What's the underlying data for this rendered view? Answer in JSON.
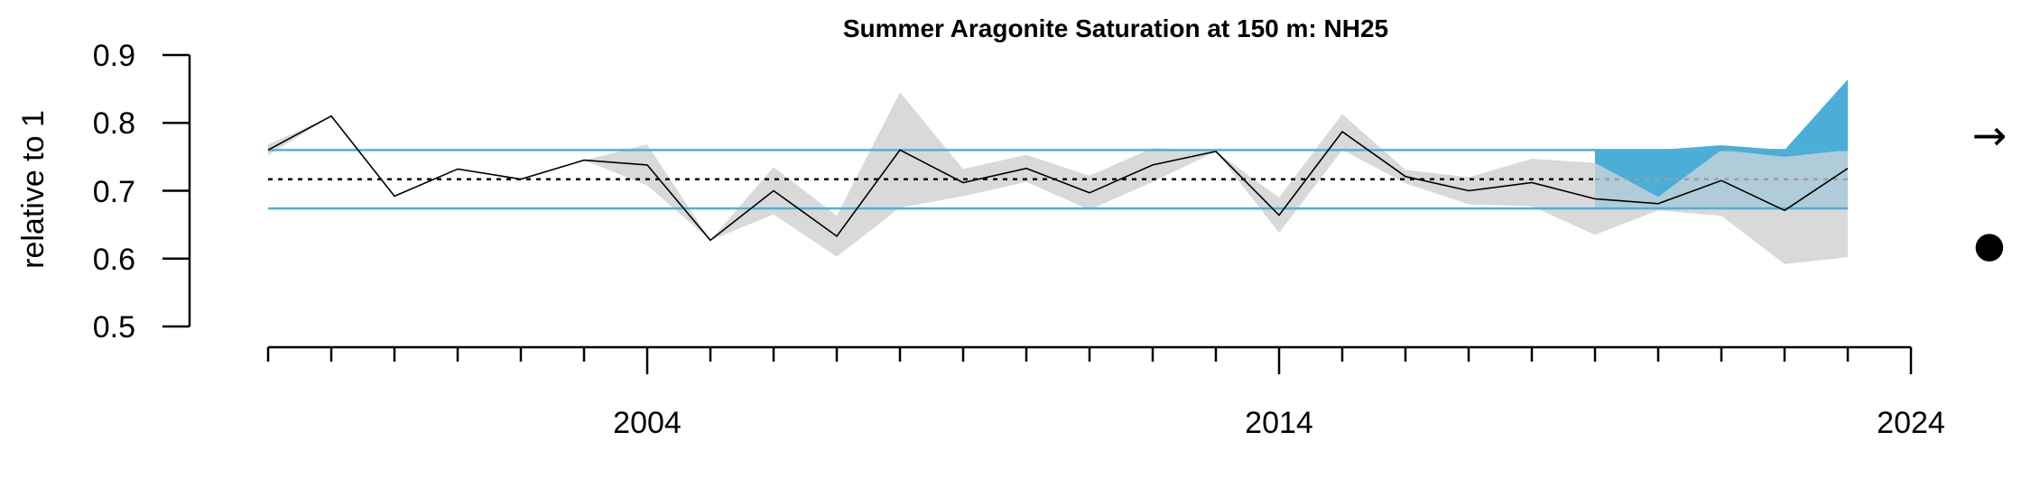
{
  "chart_data": {
    "type": "line",
    "title": "Summer Aragonite Saturation at 150 m: NH25",
    "ylabel": "relative to 1",
    "xlabel": "",
    "ylim": [
      0.5,
      0.9
    ],
    "xlim": [
      1998,
      2024
    ],
    "yticks": [
      0.5,
      0.6,
      0.7,
      0.8,
      0.9
    ],
    "ytick_labels": [
      "0.5",
      "0.6",
      "0.7",
      "0.8",
      "0.9"
    ],
    "xtick_labels": [
      "2004",
      "2014",
      "2024"
    ],
    "series": [
      {
        "x": [
          1998,
          1999,
          2000,
          2001,
          2002,
          2003,
          2004,
          2005,
          2006,
          2007,
          2008,
          2009,
          2010,
          2011,
          2012,
          2013,
          2014,
          2015,
          2016,
          2017,
          2018,
          2019,
          2020,
          2021,
          2022,
          2023
        ],
        "values": [
          0.76,
          0.81,
          0.692,
          0.732,
          0.717,
          0.745,
          0.738,
          0.627,
          0.7,
          0.633,
          0.76,
          0.712,
          0.733,
          0.697,
          0.738,
          0.758,
          0.664,
          0.787,
          0.721,
          0.7,
          0.712,
          0.688,
          0.681,
          0.715,
          0.671,
          0.733
        ],
        "lower": [
          0.752,
          0.81,
          0.692,
          0.732,
          0.717,
          0.745,
          0.708,
          0.627,
          0.665,
          0.603,
          0.675,
          0.692,
          0.713,
          0.672,
          0.713,
          0.758,
          0.638,
          0.76,
          0.711,
          0.68,
          0.677,
          0.635,
          0.671,
          0.663,
          0.592,
          0.602
        ],
        "upper": [
          0.768,
          0.81,
          0.692,
          0.732,
          0.717,
          0.745,
          0.768,
          0.627,
          0.735,
          0.663,
          0.845,
          0.732,
          0.753,
          0.722,
          0.763,
          0.758,
          0.69,
          0.813,
          0.731,
          0.72,
          0.747,
          0.741,
          0.691,
          0.767,
          0.75,
          0.864
        ]
      }
    ],
    "mean": 0.717,
    "sd_upper": 0.76,
    "sd_lower": 0.674,
    "recent_window": [
      2019,
      2023
    ],
    "trend_symbol": "→",
    "mean_symbol": "●",
    "colors": {
      "line": "#000000",
      "ribbon": "#d9d9d9",
      "sd_lines": "#4fb0d6",
      "recent_shade": "#a9c9d8",
      "above_sd_fill": "#4aaed6",
      "mean_line": "#000000",
      "recent_mean_line": "#9e9e9e"
    }
  }
}
